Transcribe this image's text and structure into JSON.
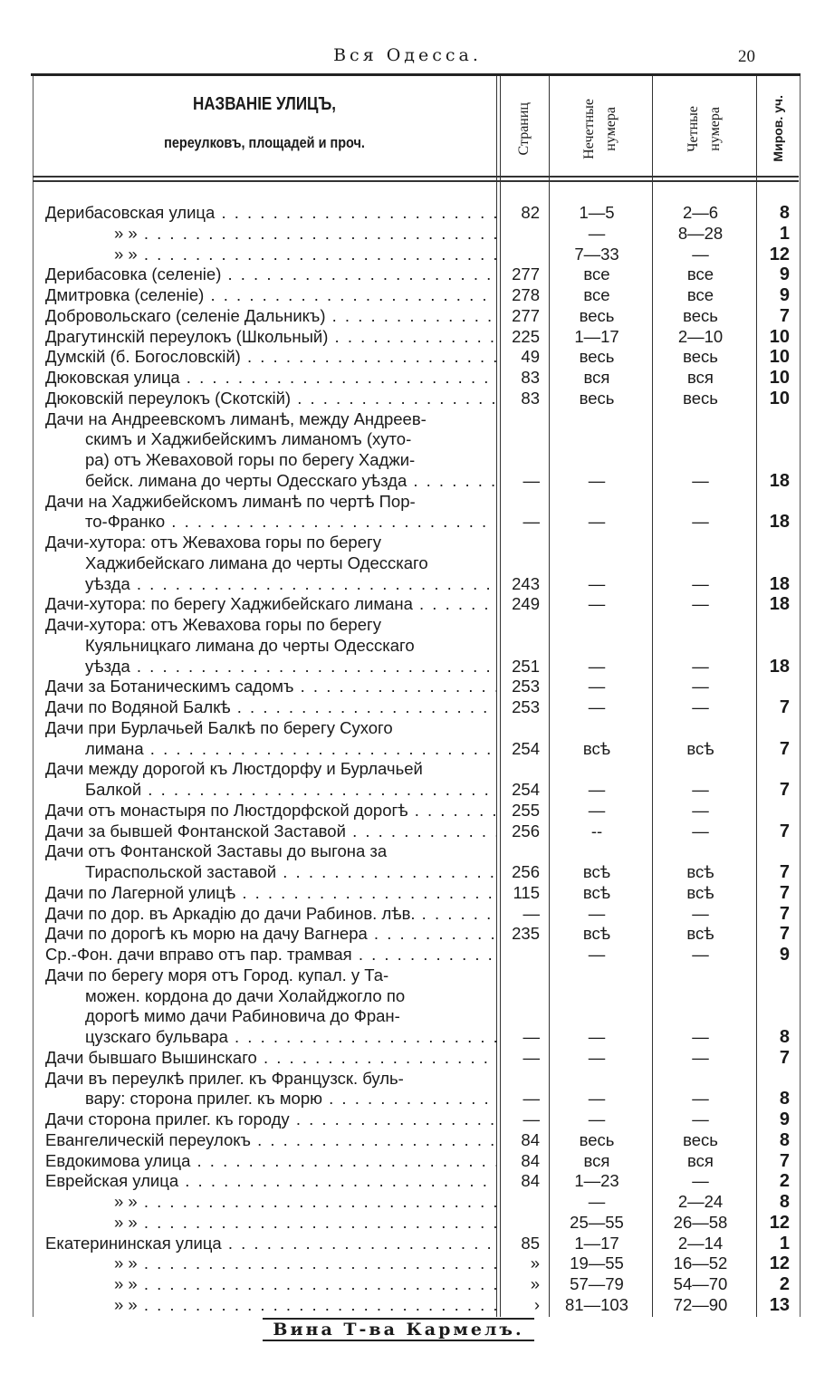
{
  "running_head": "Вся Одесса.",
  "page_number": "20",
  "header": {
    "title": "НАЗВАНІЕ УЛИЦЪ,",
    "subtitle": "переулковъ, площадей и проч.",
    "col_pages": "Страниц",
    "col_odd": [
      "Нечетные",
      "нумера"
    ],
    "col_even": [
      "Четные",
      "нумера"
    ],
    "col_district": "Миров. уч."
  },
  "entries": [
    {
      "lines": [
        "Дерибасовская улица"
      ],
      "pg": "82",
      "odd": "1—5",
      "even": "2—6",
      "mir": "8"
    },
    {
      "lines": [
        "»          »"
      ],
      "ditto": true,
      "pg": "",
      "odd": "—",
      "even": "8—28",
      "mir": "1"
    },
    {
      "lines": [
        "»          »"
      ],
      "ditto": true,
      "pg": "",
      "odd": "7—33",
      "even": "—",
      "mir": "12"
    },
    {
      "lines": [
        "Дерибасовка (селеніе)"
      ],
      "pg": "277",
      "odd": "все",
      "even": "все",
      "mir": "9"
    },
    {
      "lines": [
        "Дмитровка (селеніе)"
      ],
      "pg": "278",
      "odd": "все",
      "even": "все",
      "mir": "9"
    },
    {
      "lines": [
        "Добровольскаго (селеніе Дальникъ)"
      ],
      "pg": "277",
      "odd": "весь",
      "even": "весь",
      "mir": "7"
    },
    {
      "lines": [
        "Драгутинскій переулокъ (Школьный)"
      ],
      "pg": "225",
      "odd": "1—17",
      "even": "2—10",
      "mir": "10"
    },
    {
      "lines": [
        "Думскій (б. Богословскій)"
      ],
      "pg": "49",
      "odd": "весь",
      "even": "весь",
      "mir": "10"
    },
    {
      "lines": [
        "Дюковская улица"
      ],
      "pg": "83",
      "odd": "вся",
      "even": "вся",
      "mir": "10"
    },
    {
      "lines": [
        "Дюковскій переулокъ (Скотскій)"
      ],
      "pg": "83",
      "odd": "весь",
      "even": "весь",
      "mir": "10"
    },
    {
      "lines": [
        "Дачи на Андреевскомъ лиманѣ, между Андреев-",
        "скимъ и Хаджибейскимъ лиманомъ (хуто-",
        "ра) отъ Жеваховой горы по берегу Хаджи-",
        "бейск. лимана до черты Одесскаго уѣзда"
      ],
      "pg": "—",
      "odd": "—",
      "even": "—",
      "mir": "18"
    },
    {
      "lines": [
        "Дачи на Хаджибейскомъ лиманѣ по чертѣ Пор-",
        "то-Франко"
      ],
      "pg": "—",
      "odd": "—",
      "even": "—",
      "mir": "18"
    },
    {
      "lines": [
        "Дачи-хутора: отъ Жевахова горы по берегу",
        "Хаджибейскаго лимана до черты Одесскаго",
        "уѣзда"
      ],
      "pg": "243",
      "odd": "—",
      "even": "—",
      "mir": "18"
    },
    {
      "lines": [
        "Дачи-хутора: по берегу Хаджибейскаго лимана"
      ],
      "pg": "249",
      "odd": "—",
      "even": "—",
      "mir": "18"
    },
    {
      "lines": [
        "Дачи-хутора: отъ Жевахова горы по берегу",
        "Куяльницкаго лимана до черты Одесскаго",
        "уѣзда"
      ],
      "pg": "251",
      "odd": "—",
      "even": "—",
      "mir": "18"
    },
    {
      "lines": [
        "Дачи за Ботаническимъ садомъ"
      ],
      "pg": "253",
      "odd": "—",
      "even": "—",
      "mir": ""
    },
    {
      "lines": [
        "Дачи по Водяной Балкѣ"
      ],
      "pg": "253",
      "odd": "—",
      "even": "—",
      "mir": "7"
    },
    {
      "lines": [
        "Дачи при Бурлачьей Балкѣ по берегу Сухого",
        "лимана"
      ],
      "pg": "254",
      "odd": "всѣ",
      "even": "всѣ",
      "mir": "7"
    },
    {
      "lines": [
        "Дачи между дорогой къ Люстдорфу и Бурлачьей",
        "Балкой"
      ],
      "pg": "254",
      "odd": "—",
      "even": "—",
      "mir": "7"
    },
    {
      "lines": [
        "Дачи отъ монастыря по Люстдорфской дорогѣ"
      ],
      "pg": "255",
      "odd": "—",
      "even": "—",
      "mir": ""
    },
    {
      "lines": [
        "Дачи за бывшей Фонтанской Заставой"
      ],
      "pg": "256",
      "odd": "--",
      "even": "—",
      "mir": "7"
    },
    {
      "lines": [
        "Дачи отъ Фонтанской Заставы до выгона за",
        "Тираспольской заставой"
      ],
      "pg": "256",
      "odd": "всѣ",
      "even": "всѣ",
      "mir": "7"
    },
    {
      "lines": [
        "Дачи по Лагерной улицѣ"
      ],
      "pg": "115",
      "odd": "всѣ",
      "even": "всѣ",
      "mir": "7"
    },
    {
      "lines": [
        "Дачи по дор. въ Аркадію до дачи Рабинов. лѣв."
      ],
      "pg": "—",
      "odd": "—",
      "even": "—",
      "mir": "7"
    },
    {
      "lines": [
        "Дачи по дорогѣ къ морю на дачу Вагнера"
      ],
      "pg": "235",
      "odd": "всѣ",
      "even": "всѣ",
      "mir": "7"
    },
    {
      "lines": [
        "Ср.-Фон. дачи вправо отъ пар. трамвая"
      ],
      "pg": "",
      "odd": "—",
      "even": "—",
      "mir": "9"
    },
    {
      "lines": [
        "Дачи по берегу моря отъ Город. купал. у Та-",
        "можен. кордона до дачи Холайджогло по",
        "дорогѣ мимо дачи Рабиновича до Фран-",
        "цузскаго бульвара"
      ],
      "pg": "—",
      "odd": "—",
      "even": "—",
      "mir": "8"
    },
    {
      "lines": [
        "Дачи бывшаго Вышинскаго"
      ],
      "pg": "—",
      "odd": "—",
      "even": "—",
      "mir": "7"
    },
    {
      "lines": [
        "Дачи въ переулкѣ прилег. къ Французск. буль-",
        "вару: сторона прилег. къ морю"
      ],
      "pg": "—",
      "odd": "—",
      "even": "—",
      "mir": "8"
    },
    {
      "lines": [
        "Дачи сторона прилег. къ городу"
      ],
      "pg": "—",
      "odd": "—",
      "even": "—",
      "mir": "9"
    },
    {
      "lines": [
        "Евангелическій переулокъ"
      ],
      "pg": "84",
      "odd": "весь",
      "even": "весь",
      "mir": "8"
    },
    {
      "lines": [
        "Евдокимова улица"
      ],
      "pg": "84",
      "odd": "вся",
      "even": "вся",
      "mir": "7"
    },
    {
      "lines": [
        "Еврейская улица"
      ],
      "pg": "84",
      "odd": "1—23",
      "even": "—",
      "mir": "2"
    },
    {
      "lines": [
        "»          »"
      ],
      "ditto": true,
      "pg": "",
      "odd": "—",
      "even": "2—24",
      "mir": "8"
    },
    {
      "lines": [
        "»          »"
      ],
      "ditto": true,
      "pg": "",
      "odd": "25—55",
      "even": "26—58",
      "mir": "12"
    },
    {
      "lines": [
        "Екатерининская улица"
      ],
      "pg": "85",
      "odd": "1—17",
      "even": "2—14",
      "mir": "1"
    },
    {
      "lines": [
        "»          »"
      ],
      "ditto": true,
      "pg": "»",
      "odd": "19—55",
      "even": "16—52",
      "mir": "12"
    },
    {
      "lines": [
        "»          »"
      ],
      "ditto": true,
      "pg": "»",
      "odd": "57—79",
      "even": "54—70",
      "mir": "2"
    },
    {
      "lines": [
        "»          »"
      ],
      "ditto": true,
      "pg": "›",
      "odd": "81—103",
      "even": "72—90",
      "mir": "13"
    }
  ],
  "footer": "Вина Т-ва Кармелъ."
}
